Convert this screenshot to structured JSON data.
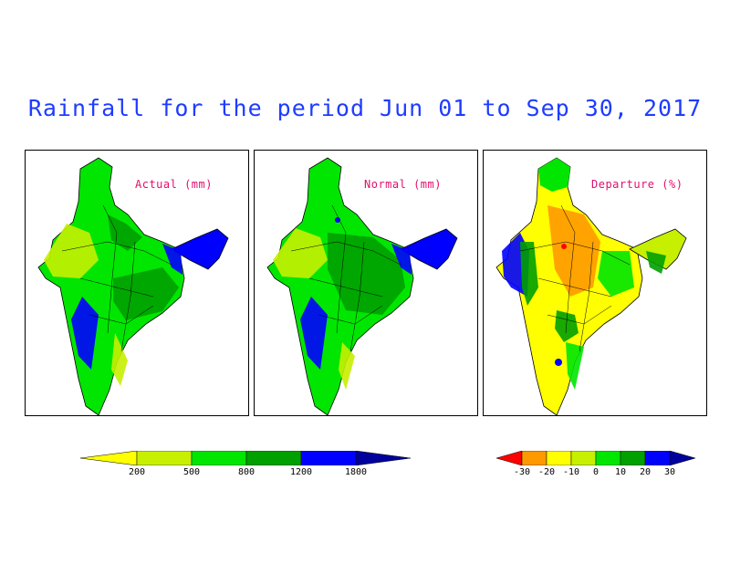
{
  "title": "Rainfall for the period Jun 01 to Sep 30, 2017",
  "panels": {
    "actual": {
      "label": "Actual (mm)"
    },
    "normal": {
      "label": "Normal (mm)"
    },
    "departure": {
      "label": "Departure (%)"
    }
  },
  "legend_rainfall": {
    "ticks": [
      "200",
      "500",
      "800",
      "1200",
      "1800"
    ],
    "colors": [
      "#ffff00",
      "#c6f000",
      "#00e600",
      "#00a000",
      "#0000ff",
      "#00009c"
    ]
  },
  "legend_departure": {
    "ticks": [
      "-30",
      "-20",
      "-10",
      "0",
      "10",
      "20",
      "30"
    ],
    "colors": [
      "#ff0000",
      "#ff9900",
      "#ffff00",
      "#c6f000",
      "#00e600",
      "#00a000",
      "#0000ff",
      "#00009c"
    ]
  }
}
